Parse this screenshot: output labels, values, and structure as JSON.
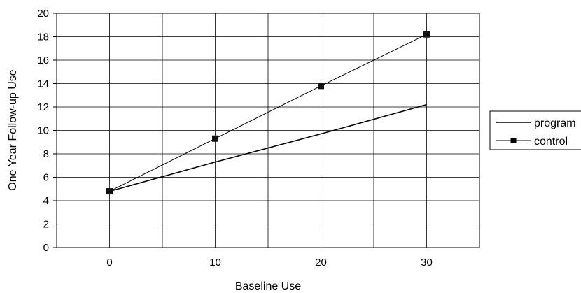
{
  "chart_data": {
    "type": "line",
    "x": [
      0,
      10,
      20,
      30
    ],
    "x_ticks": [
      "0",
      "10",
      "20",
      "30"
    ],
    "y_ticks": [
      "0",
      "2",
      "4",
      "6",
      "8",
      "10",
      "12",
      "14",
      "16",
      "18",
      "20"
    ],
    "xlabel": "Baseline Use",
    "ylabel": "One Year Follow-up Use",
    "xlim": [
      -5,
      35
    ],
    "ylim": [
      0,
      20
    ],
    "grid": true,
    "legend_position": "right",
    "series": [
      {
        "name": "program",
        "values": [
          4.8,
          7.3,
          9.7,
          12.2
        ],
        "markers": false,
        "color": "#000000"
      },
      {
        "name": "control",
        "values": [
          4.8,
          9.3,
          13.8,
          18.2
        ],
        "markers": true,
        "color": "#000000"
      }
    ]
  }
}
